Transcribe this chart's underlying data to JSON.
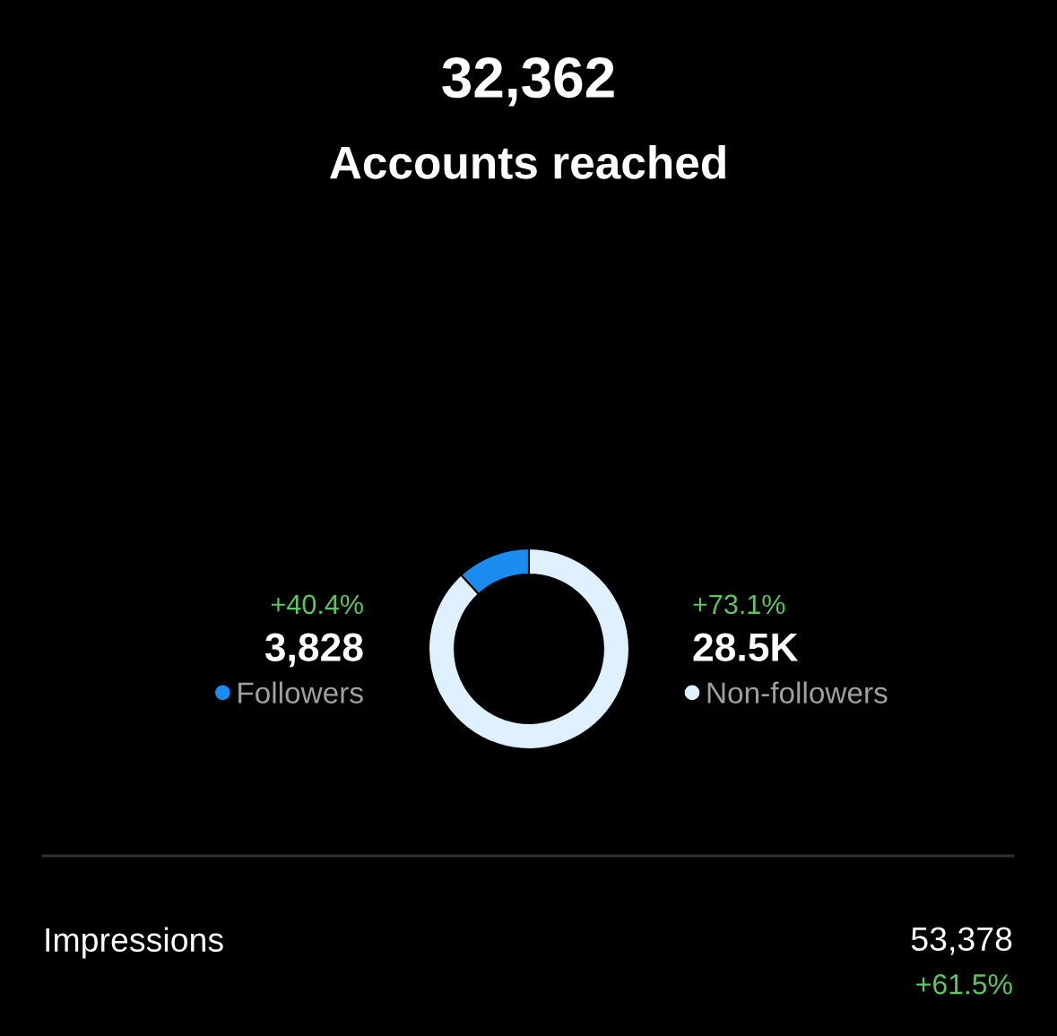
{
  "chart_data": {
    "type": "donut",
    "title": "32,362",
    "subtitle": "Accounts reached",
    "categories": [
      "Followers",
      "Non-followers"
    ],
    "values": [
      3828,
      28500
    ],
    "value_labels": [
      "3,828",
      "28.5K"
    ],
    "colors": [
      "#1a8cf0",
      "#dff0ff"
    ],
    "legend": "bottom",
    "annotations": [
      "+40.4%",
      "+73.1%",
      "Impressions",
      "53,378",
      "+61.5%"
    ]
  }
}
